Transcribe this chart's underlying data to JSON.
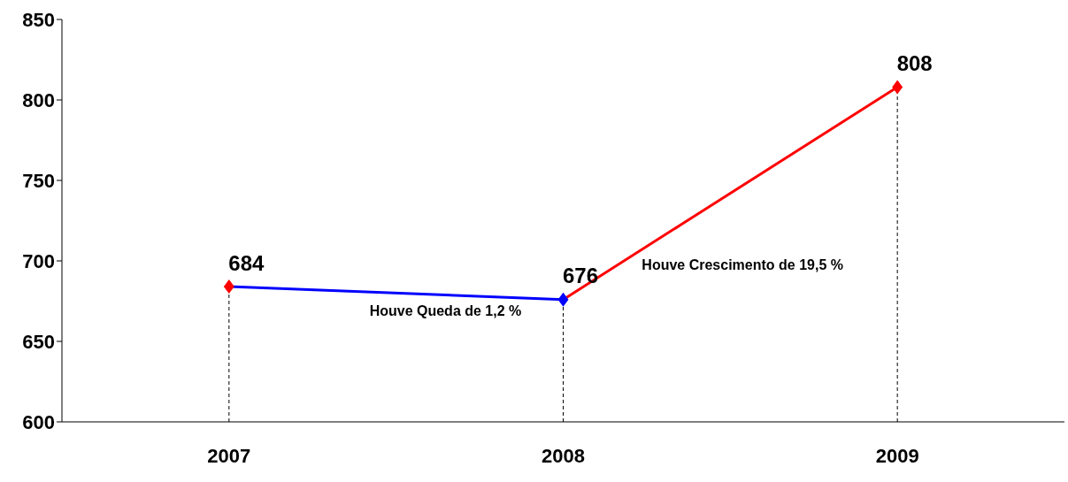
{
  "chart_data": {
    "type": "line",
    "categories": [
      "2007",
      "2008",
      "2009"
    ],
    "series": [
      {
        "values": [
          684,
          676,
          808
        ],
        "colors": [
          "#ff0000",
          "#0000ff",
          "#ff0000"
        ]
      }
    ],
    "ylim": [
      600,
      850
    ],
    "yticks": [
      600,
      650,
      700,
      750,
      800,
      850
    ],
    "grid": false,
    "marker": "diamond",
    "data_labels": true,
    "legend": false,
    "ref_lines": [
      {
        "axis": "x",
        "value": "2007",
        "line_style": "dashed",
        "color": "#000000"
      },
      {
        "axis": "x",
        "value": "2008",
        "line_style": "dashed",
        "color": "#000000"
      },
      {
        "axis": "x",
        "value": "2009",
        "line_style": "dashed",
        "color": "#000000"
      }
    ],
    "annotations": [
      "Houve Queda de 1,2 %",
      "Houve Crescimento de 19,5 %"
    ]
  }
}
